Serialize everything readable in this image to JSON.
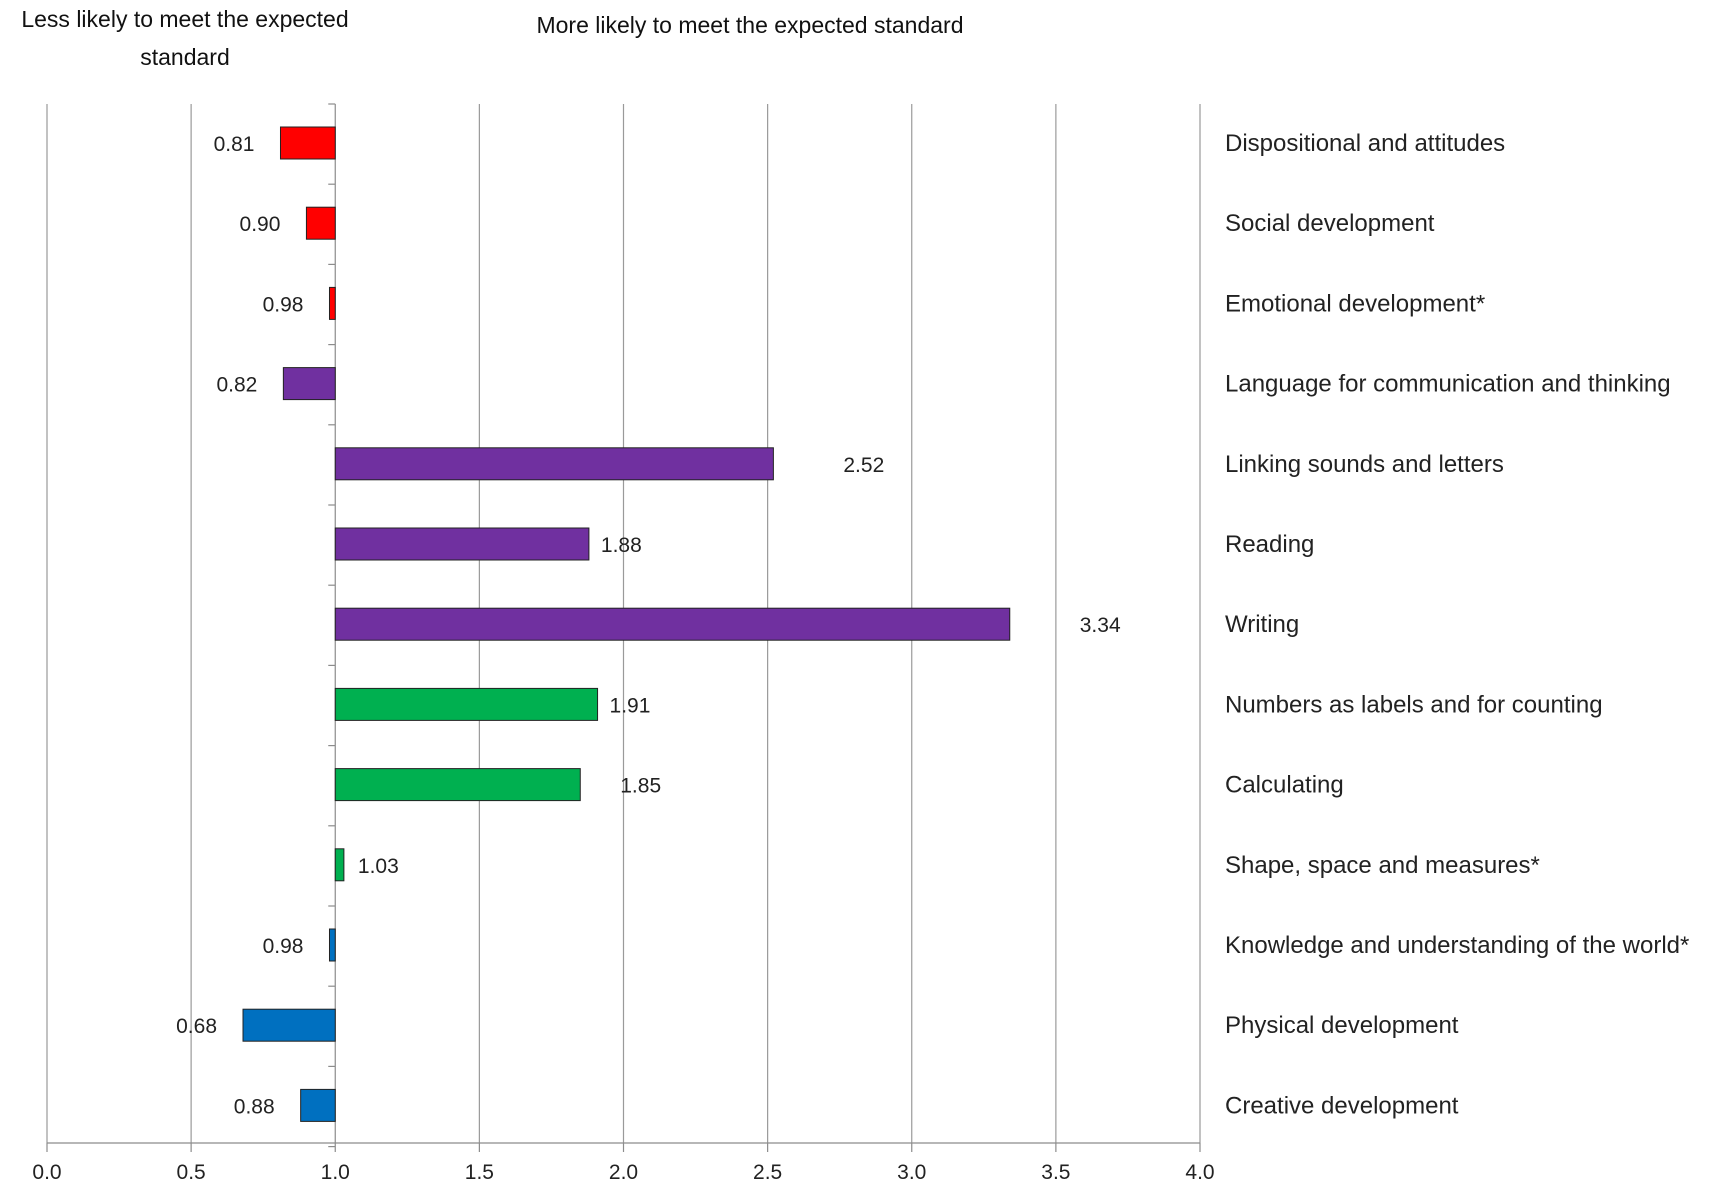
{
  "header": {
    "left_line1": "Less likely to meet the expected",
    "left_line2": "standard",
    "right": "More likely to meet the expected standard"
  },
  "chart_data": {
    "type": "bar",
    "orientation": "horizontal",
    "baseline": 1.0,
    "xlim": [
      0,
      4
    ],
    "x_ticks": [
      "0.0",
      "0.5",
      "1.0",
      "1.5",
      "2.0",
      "2.5",
      "3.0",
      "3.5",
      "4.0"
    ],
    "grid": "vertical",
    "categories": [
      "Dispositional and attitudes",
      "Social development",
      "Emotional development*",
      "Language for communication and thinking",
      "Linking sounds and letters",
      "Reading",
      "Writing",
      "Numbers as labels and for counting",
      "Calculating",
      "Shape, space and measures*",
      "Knowledge and understanding of the world*",
      "Physical development",
      "Creative development"
    ],
    "values": [
      0.81,
      0.9,
      0.98,
      0.82,
      2.52,
      1.88,
      3.34,
      1.91,
      1.85,
      1.03,
      0.98,
      0.68,
      0.88
    ],
    "value_labels": [
      "0.81",
      "0.90",
      "0.98",
      "0.82",
      "2.52",
      "1.88",
      "3.34",
      "1.91",
      "1.85",
      "1.03",
      "0.98",
      "0.68",
      "0.88"
    ],
    "colors": [
      "#ff0000",
      "#ff0000",
      "#ff0000",
      "#7030a0",
      "#7030a0",
      "#7030a0",
      "#7030a0",
      "#00b050",
      "#00b050",
      "#00b050",
      "#0070c0",
      "#0070c0",
      "#0070c0"
    ]
  }
}
